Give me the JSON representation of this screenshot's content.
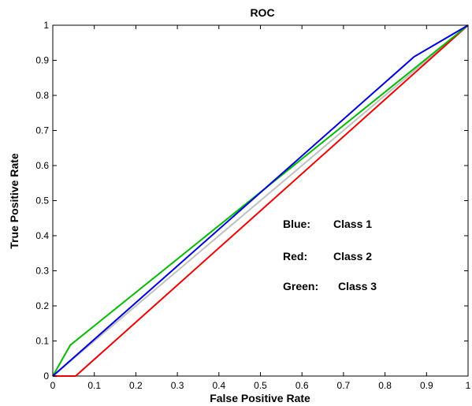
{
  "chart_data": {
    "type": "line",
    "title": "ROC",
    "xlabel": "False Positive Rate",
    "ylabel": "True Positive Rate",
    "xlim": [
      0,
      1
    ],
    "ylim": [
      0,
      1
    ],
    "x_ticks": [
      "0",
      "0.1",
      "0.2",
      "0.3",
      "0.4",
      "0.5",
      "0.6",
      "0.7",
      "0.8",
      "0.9",
      "1"
    ],
    "y_ticks": [
      "0",
      "0.1",
      "0.2",
      "0.3",
      "0.4",
      "0.5",
      "0.6",
      "0.7",
      "0.8",
      "0.9",
      "1"
    ],
    "grid": false,
    "series": [
      {
        "color": "#0000dd",
        "x": [
          0,
          0.87,
          1
        ],
        "y": [
          0,
          0.91,
          1
        ]
      },
      {
        "color": "#ee0000",
        "x": [
          0,
          0.055,
          1
        ],
        "y": [
          0,
          0,
          1
        ]
      },
      {
        "color": "#00bb00",
        "x": [
          0,
          0.042,
          1
        ],
        "y": [
          0,
          0.088,
          1
        ]
      },
      {
        "color": "#c0c0c0",
        "x": [
          0,
          1
        ],
        "y": [
          0,
          1
        ]
      }
    ],
    "annotations": [
      {
        "label": "Blue:",
        "value": "Class 1"
      },
      {
        "label": "Red:",
        "value": "Class 2"
      },
      {
        "label": "Green:",
        "value": "Class 3"
      }
    ]
  }
}
